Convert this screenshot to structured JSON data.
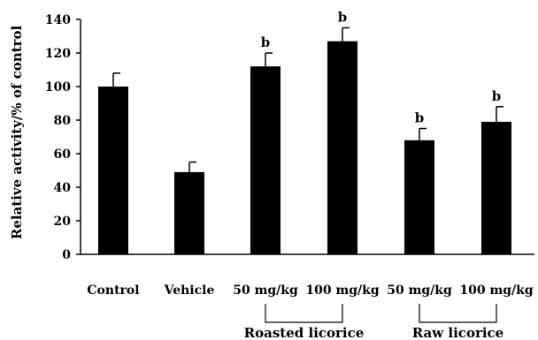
{
  "chart_data": {
    "type": "bar",
    "title": "",
    "xlabel": "",
    "ylabel": "Relative activity/% of control",
    "ylim": [
      0,
      140
    ],
    "yticks": [
      0,
      20,
      40,
      60,
      80,
      100,
      120,
      140
    ],
    "grid": false,
    "categories": [
      "Control",
      "Vehicle",
      "50 mg/kg",
      "100 mg/kg",
      "50 mg/kg",
      "100 mg/kg"
    ],
    "values": [
      100,
      49,
      112,
      127,
      68,
      79
    ],
    "errors": [
      8,
      6,
      8,
      8,
      7,
      9
    ],
    "annotations": [
      "",
      "",
      "b",
      "b",
      "b",
      "b"
    ],
    "groups": [
      {
        "label": "Roasted licorice",
        "categories": [
          2,
          3
        ]
      },
      {
        "label": "Raw licorice",
        "categories": [
          4,
          5
        ]
      }
    ],
    "colors": {
      "bar": "#000000",
      "axis": "#000000"
    }
  }
}
